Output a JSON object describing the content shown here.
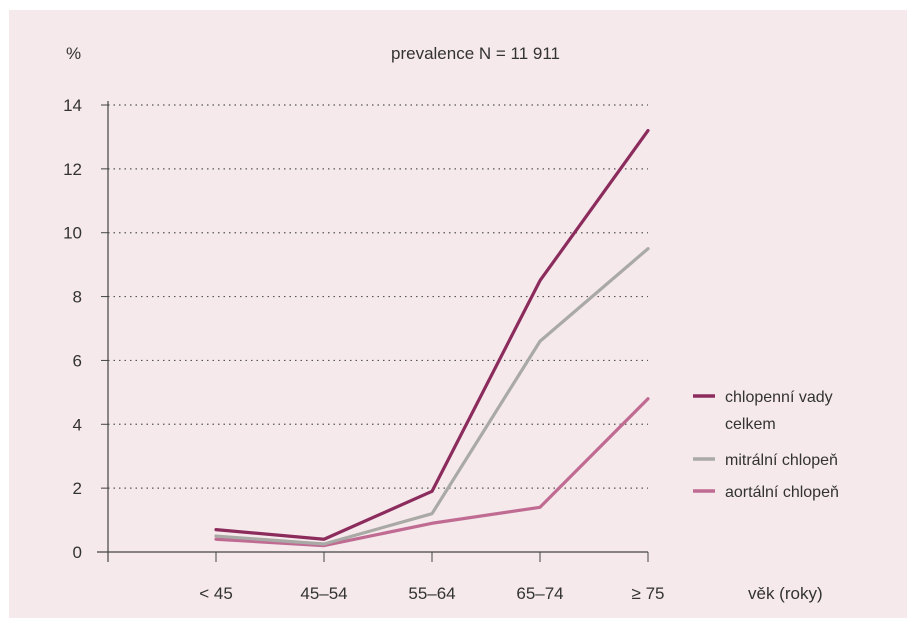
{
  "chart_data": {
    "type": "line",
    "title": "prevalence N = 11 911",
    "ylabel": "%",
    "xlabel": "věk (roky)",
    "categories": [
      "< 45",
      "45–54",
      "55–64",
      "65–74",
      "≥ 75"
    ],
    "ylim": [
      0,
      14
    ],
    "yticks": [
      0,
      2,
      4,
      6,
      8,
      10,
      12,
      14
    ],
    "grid": "horizontal dotted",
    "legend_position": "right",
    "series": [
      {
        "name": "chlopenní vady celkem",
        "legend_lines": [
          "chlopenní vady",
          "celkem"
        ],
        "color": "#8b2c5d",
        "values": [
          0.7,
          0.4,
          1.9,
          8.5,
          13.2
        ]
      },
      {
        "name": "mitrální chlopeň",
        "legend_lines": [
          "mitrální chlopeň"
        ],
        "color": "#a9a9a6",
        "values": [
          0.5,
          0.25,
          1.2,
          6.6,
          9.5
        ]
      },
      {
        "name": "aortální chlopeň",
        "legend_lines": [
          "aortální chlopeň"
        ],
        "color": "#c06b92",
        "values": [
          0.4,
          0.2,
          0.9,
          1.4,
          4.8
        ]
      }
    ]
  }
}
